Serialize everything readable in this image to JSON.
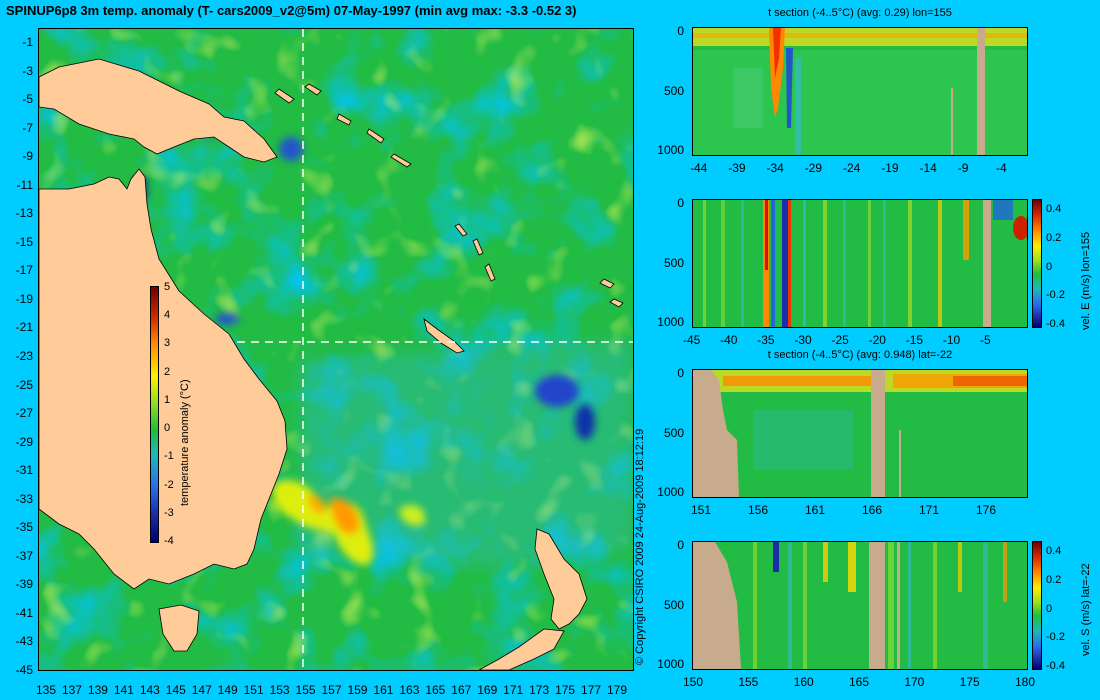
{
  "title": "SPINUP6p8 3m temp. anomaly (T- cars2009_v2@5m) 07-May-1997 (min avg max: -3.3 -0.52 3)",
  "copyright": "© Copyright CSIRO 2009    24-Aug-2009 18:12:19",
  "map": {
    "lon_labels": [
      "135",
      "137",
      "139",
      "141",
      "143",
      "145",
      "147",
      "149",
      "151",
      "153",
      "155",
      "157",
      "159",
      "161",
      "163",
      "165",
      "167",
      "169",
      "171",
      "173",
      "175",
      "177",
      "179"
    ],
    "lat_labels": [
      "-1",
      "-3",
      "-5",
      "-7",
      "-9",
      "-11",
      "-13",
      "-15",
      "-17",
      "-19",
      "-21",
      "-23",
      "-25",
      "-27",
      "-29",
      "-31",
      "-33",
      "-35",
      "-37",
      "-39",
      "-41",
      "-43",
      "-45"
    ],
    "xlim": [
      135,
      180
    ],
    "ylim": [
      -45,
      0
    ],
    "section_lon": 155,
    "section_lat": -22,
    "colorbar": {
      "title": "temperature anomaly (°C)",
      "range": [
        -4,
        5
      ],
      "labels": [
        "5",
        "4",
        "3",
        "2",
        "1",
        "0",
        "-1",
        "-2",
        "-3",
        "-4"
      ]
    }
  },
  "panels": [
    {
      "title": "t section (-4..5°C) (avg: 0.29) lon=155",
      "x_labels": [
        "-44",
        "-39",
        "-34",
        "-29",
        "-24",
        "-19",
        "-14",
        "-9",
        "-4"
      ],
      "y_labels": [
        "0",
        "500",
        "1000"
      ],
      "colorbar": null
    },
    {
      "title": "",
      "x_labels": [
        "-45",
        "-40",
        "-35",
        "-30",
        "-25",
        "-20",
        "-15",
        "-10",
        "-5"
      ],
      "y_labels": [
        "0",
        "500",
        "1000"
      ],
      "colorbar": {
        "title": "vel. E (m/s) lon=155",
        "range": [
          -0.4,
          0.45
        ],
        "labels": [
          "0.4",
          "0.2",
          "0",
          "-0.2",
          "-0.4"
        ]
      }
    },
    {
      "title": "t section (-4..5°C) (avg: 0.948) lat=-22",
      "x_labels": [
        "151",
        "156",
        "161",
        "166",
        "171",
        "176"
      ],
      "y_labels": [
        "0",
        "500",
        "1000"
      ],
      "colorbar": null
    },
    {
      "title": "",
      "x_labels": [
        "150",
        "155",
        "160",
        "165",
        "170",
        "175",
        "180"
      ],
      "y_labels": [
        "0",
        "500",
        "1000"
      ],
      "colorbar": {
        "title": "vel. S (m/s) lat=-22",
        "range": [
          -0.4,
          0.45
        ],
        "labels": [
          "0.4",
          "0.2",
          "0",
          "-0.2",
          "-0.4"
        ]
      }
    }
  ],
  "colors": {
    "background": "#00ccff",
    "land": "#ffcc99",
    "section_land": "#c8aa8c",
    "ocean_base": "#22bb44"
  }
}
